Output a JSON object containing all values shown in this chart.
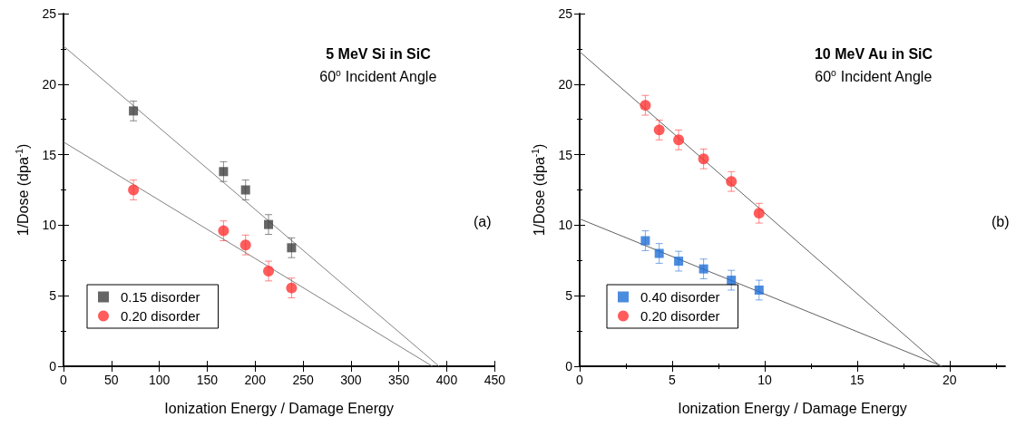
{
  "chart_data": [
    {
      "type": "scatter",
      "title": "5 MeV Si in SiC",
      "subtitle": "60$^{o}$ Incident Angle",
      "xlabel": "Ionization Energy / Damage Energy",
      "ylabel": "1/Dose (dpa$^{-1}$)",
      "annotations": [
        "(a)"
      ],
      "xlim": [
        0,
        450
      ],
      "xticks": [
        0,
        50,
        100,
        150,
        200,
        250,
        300,
        350,
        400,
        450
      ],
      "ylim": [
        0,
        25
      ],
      "yticks": [
        0,
        5,
        10,
        15,
        20,
        25
      ],
      "grid": false,
      "legend": "bottom left",
      "series": [
        {
          "name": "0.15 disorder",
          "color": "#404040",
          "marker": "square",
          "x": [
            73,
            167,
            190,
            214,
            238
          ],
          "values": [
            18.1,
            13.8,
            12.5,
            10.05,
            8.4
          ],
          "errors": [
            0.7,
            0.7,
            0.7,
            0.7,
            0.7
          ]
        },
        {
          "name": "0.20 disorder",
          "color": "#ff3333",
          "marker": "circle",
          "x": [
            73,
            167,
            190,
            214,
            238
          ],
          "values": [
            12.5,
            9.6,
            8.6,
            6.75,
            5.55
          ],
          "errors": [
            0.7,
            0.7,
            0.7,
            0.7,
            0.7
          ]
        },
        {
          "type": "line",
          "color": "#808080",
          "marker": "none",
          "x": [
            0,
            392
          ],
          "values": [
            22.7,
            0
          ]
        },
        {
          "type": "line",
          "color": "#808080",
          "marker": "none",
          "x": [
            0,
            385
          ],
          "values": [
            15.9,
            0
          ]
        }
      ]
    },
    {
      "type": "scatter",
      "title": "10 MeV Au in SiC",
      "subtitle": "60$^{o}$ Incident Angle",
      "xlabel": "Ionization Energy / Damage Energy",
      "ylabel": "1/Dose (dpa$^{-1}$)",
      "annotations": [
        "(b)"
      ],
      "xlim": [
        0,
        23
      ],
      "xticks": [
        0,
        5,
        10,
        15,
        20
      ],
      "ylim": [
        0,
        25
      ],
      "yticks": [
        0,
        5,
        10,
        15,
        20,
        25
      ],
      "grid": false,
      "legend": "bottom left",
      "series": [
        {
          "name": "0.40 disorder",
          "color": "#1f6fd6",
          "marker": "square",
          "x": [
            3.55,
            4.3,
            5.35,
            6.7,
            8.2,
            9.7
          ],
          "values": [
            8.9,
            8.0,
            7.45,
            6.9,
            6.1,
            5.4
          ],
          "errors": [
            0.7,
            0.7,
            0.7,
            0.7,
            0.7,
            0.7
          ]
        },
        {
          "name": "0.20 disorder",
          "color": "#ff3333",
          "marker": "circle",
          "x": [
            3.55,
            4.3,
            5.35,
            6.7,
            8.2,
            9.7
          ],
          "values": [
            18.5,
            16.75,
            16.05,
            14.7,
            13.1,
            10.85
          ],
          "errors": [
            0.7,
            0.7,
            0.7,
            0.7,
            0.7,
            0.7
          ]
        },
        {
          "type": "line",
          "color": "#606060",
          "marker": "none",
          "x": [
            0,
            19.5
          ],
          "values": [
            22.3,
            0
          ]
        },
        {
          "type": "line",
          "color": "#606060",
          "marker": "none",
          "x": [
            0,
            19.6
          ],
          "values": [
            10.45,
            0
          ]
        }
      ]
    }
  ]
}
